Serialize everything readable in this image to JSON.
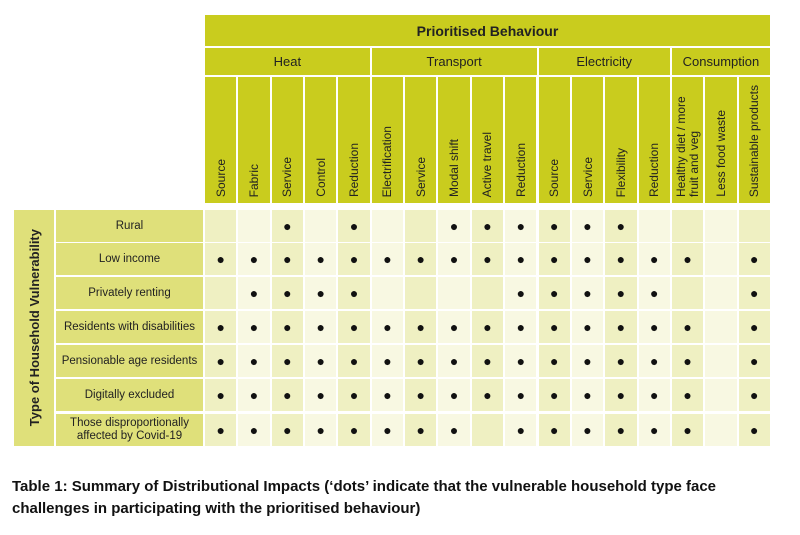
{
  "header": {
    "title": "Prioritised Behaviour",
    "side_title": "Type of Household Vulnerability"
  },
  "groups": [
    {
      "label": "Heat",
      "span": 5
    },
    {
      "label": "Transport",
      "span": 5
    },
    {
      "label": "Electricity",
      "span": 4
    },
    {
      "label": "Consumption",
      "span": 3
    }
  ],
  "columns": [
    "Source",
    "Fabric",
    "Service",
    "Control",
    "Reduction",
    "Electrification",
    "Service",
    "Modal shift",
    "Active travel",
    "Reduction",
    "Source",
    "Service",
    "Flexibility",
    "Reduction",
    "Healthy diet / more fruit and veg",
    "Less food waste",
    "Sustainable products"
  ],
  "rows": [
    {
      "label": "Rural",
      "dots": [
        0,
        0,
        1,
        0,
        1,
        0,
        0,
        1,
        1,
        1,
        1,
        1,
        1,
        0,
        0,
        0,
        0
      ]
    },
    {
      "label": "Low income",
      "dots": [
        1,
        1,
        1,
        1,
        1,
        1,
        1,
        1,
        1,
        1,
        1,
        1,
        1,
        1,
        1,
        0,
        1
      ]
    },
    {
      "label": "Privately renting",
      "dots": [
        0,
        1,
        1,
        1,
        1,
        0,
        0,
        0,
        0,
        1,
        1,
        1,
        1,
        1,
        0,
        0,
        1
      ]
    },
    {
      "label": "Residents with disabilities",
      "dots": [
        1,
        1,
        1,
        1,
        1,
        1,
        1,
        1,
        1,
        1,
        1,
        1,
        1,
        1,
        1,
        0,
        1
      ]
    },
    {
      "label": "Pensionable age residents",
      "dots": [
        1,
        1,
        1,
        1,
        1,
        1,
        1,
        1,
        1,
        1,
        1,
        1,
        1,
        1,
        1,
        0,
        1
      ]
    },
    {
      "label": "Digitally excluded",
      "dots": [
        1,
        1,
        1,
        1,
        1,
        1,
        1,
        1,
        1,
        1,
        1,
        1,
        1,
        1,
        1,
        0,
        1
      ]
    },
    {
      "label": "Those disproportionally affected by Covid-19",
      "dots": [
        1,
        1,
        1,
        1,
        1,
        1,
        1,
        1,
        0,
        1,
        1,
        1,
        1,
        1,
        1,
        0,
        1
      ]
    }
  ],
  "dot_symbol": "●",
  "caption": "Table 1: Summary of Distributional Impacts (‘dots’ indicate that the vulnerable household type face challenges in participating with the prioritised behaviour)"
}
